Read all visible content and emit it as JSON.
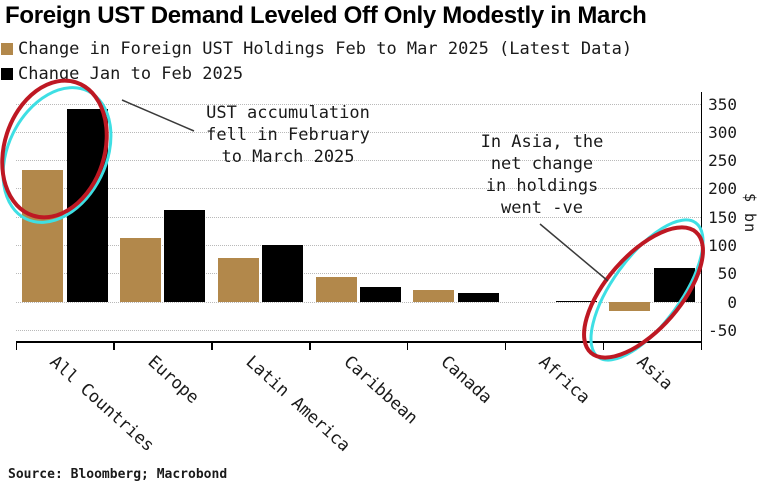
{
  "header": {
    "title": "Foreign UST Demand Leveled Off Only Modestly in March"
  },
  "source": {
    "text": "Source: Bloomberg; Macrobond"
  },
  "colors": {
    "tan": "#B2884B",
    "black": "#000000",
    "ellipse_red": "#BE1823",
    "ellipse_cyan": "#3EDFE4",
    "callout": "#3a3a3a",
    "grid": "#b9b9b9",
    "text": "#1a1a1a"
  },
  "annotations": [
    {
      "lines": [
        "UST accumulation",
        "fell in February",
        "to March 2025"
      ]
    },
    {
      "lines": [
        "In Asia, the",
        "net change",
        "in holdings",
        "went -ve"
      ]
    }
  ],
  "chart_data": {
    "type": "bar",
    "title": "Foreign UST Demand Leveled Off Only Modestly in March",
    "categories": [
      "All Countries",
      "Europe",
      "Latin America",
      "Caribbean",
      "Canada",
      "Africa",
      "Asia"
    ],
    "series": [
      {
        "name": "Change in Foreign UST Holdings Feb to Mar 2025 (Latest Data)",
        "color": "#B2884B",
        "values": [
          233,
          113,
          77,
          45,
          21,
          0,
          -16
        ]
      },
      {
        "name": "Change Jan to Feb 2025",
        "color": "#000000",
        "values": [
          342,
          162,
          101,
          26,
          16,
          2,
          61
        ]
      }
    ],
    "xlabel": "",
    "ylabel": "$ bn",
    "ylim": [
      -50,
      350
    ],
    "yticks": [
      -50,
      0,
      50,
      100,
      150,
      200,
      250,
      300,
      350
    ],
    "grid": "horizontal-dotted",
    "legend_position": "top-left"
  }
}
